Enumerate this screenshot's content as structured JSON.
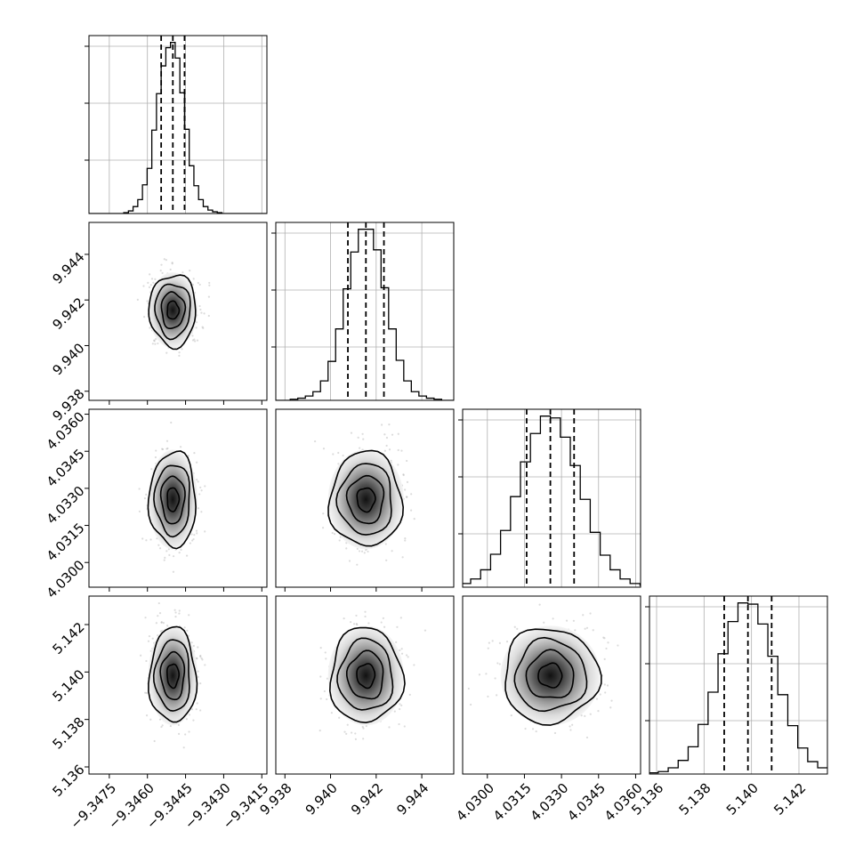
{
  "chart_data": {
    "type": "corner",
    "title": "",
    "parameters": [
      {
        "index": 0,
        "median": -9.345,
        "quantile_low": -9.34546,
        "quantile_high": -9.34454,
        "sigma": 0.00046,
        "range": [
          -9.3483,
          -9.3413
        ],
        "ticks": [
          {
            "value": -9.3475,
            "label": "−9.3475"
          },
          {
            "value": -9.346,
            "label": "−9.3460"
          },
          {
            "value": -9.3445,
            "label": "−9.3445"
          },
          {
            "value": -9.343,
            "label": "−9.3430"
          },
          {
            "value": -9.3415,
            "label": "−9.3415"
          }
        ],
        "hist_counts": [
          1,
          3,
          8,
          16,
          33,
          52,
          96,
          138,
          170,
          191,
          197,
          179,
          139,
          97,
          55,
          32,
          16,
          8,
          4,
          2,
          1
        ]
      },
      {
        "index": 1,
        "median": 9.94155,
        "quantile_low": 9.94076,
        "quantile_high": 9.94234,
        "sigma": 0.00079,
        "range": [
          9.9376,
          9.9454
        ],
        "ticks": [
          {
            "value": 9.938,
            "label": "9.938"
          },
          {
            "value": 9.94,
            "label": "9.940"
          },
          {
            "value": 9.942,
            "label": "9.942"
          },
          {
            "value": 9.944,
            "label": "9.944"
          }
        ],
        "hist_counts": [
          1,
          2,
          4,
          8,
          18,
          36,
          66,
          103,
          137,
          158,
          158,
          139,
          104,
          66,
          37,
          18,
          8,
          4,
          2,
          1
        ]
      },
      {
        "index": 2,
        "median": 4.03255,
        "quantile_low": 4.03159,
        "quantile_high": 4.03351,
        "sigma": 0.00096,
        "range": [
          4.029,
          4.0362
        ],
        "ticks": [
          {
            "value": 4.03,
            "label": "4.0300"
          },
          {
            "value": 4.0315,
            "label": "4.0315"
          },
          {
            "value": 4.033,
            "label": "4.0330"
          },
          {
            "value": 4.0345,
            "label": "4.0345"
          },
          {
            "value": 4.036,
            "label": "4.0360"
          }
        ],
        "hist_counts": [
          2,
          4,
          9,
          19,
          36,
          62,
          99,
          137,
          168,
          187,
          185,
          164,
          133,
          96,
          60,
          35,
          19,
          9,
          4,
          2
        ]
      },
      {
        "index": 3,
        "median": 5.13985,
        "quantile_low": 5.13885,
        "quantile_high": 5.14085,
        "sigma": 0.001,
        "range": [
          5.1357,
          5.1432
        ],
        "ticks": [
          {
            "value": 5.136,
            "label": "5.136"
          },
          {
            "value": 5.138,
            "label": "5.138"
          },
          {
            "value": 5.14,
            "label": "5.140"
          },
          {
            "value": 5.142,
            "label": "5.142"
          }
        ],
        "hist_counts": [
          1,
          2,
          5,
          11,
          22,
          40,
          66,
          97,
          123,
          138,
          137,
          121,
          95,
          64,
          39,
          21,
          10,
          5,
          2,
          1
        ]
      }
    ],
    "contour_levels_sigma": [
      0.5,
      1.0,
      1.5,
      2.0
    ],
    "grid": true,
    "quantiles_shown": [
      0.16,
      0.5,
      0.84
    ]
  }
}
